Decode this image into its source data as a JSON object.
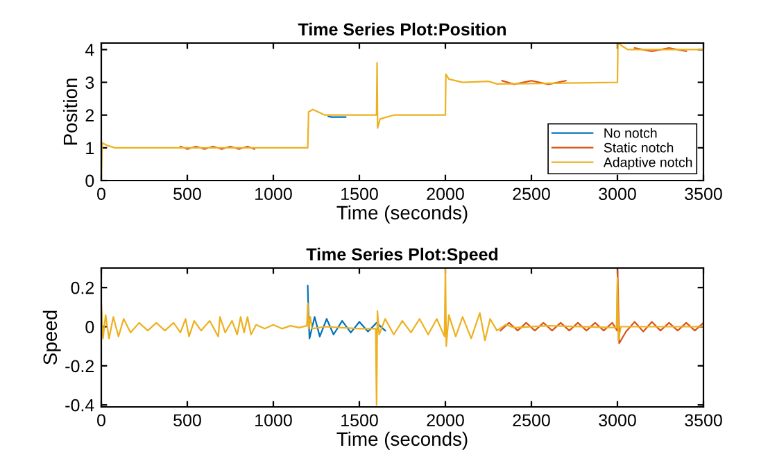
{
  "chart_data": [
    {
      "type": "line",
      "title": "Time Series Plot:Position",
      "xlabel": "Time (seconds)",
      "ylabel": "Position",
      "xlim": [
        0,
        3500
      ],
      "xticks": [
        0,
        500,
        1000,
        1500,
        2000,
        2500,
        3000,
        3500
      ],
      "ylim": [
        0,
        4.2
      ],
      "yticks": [
        0,
        1,
        2,
        3,
        4
      ],
      "grid": false,
      "legend": "bottom right",
      "line_style": "solid",
      "marker": "none",
      "series": [
        {
          "name": "No notch",
          "color": "#0072bd",
          "x": [
            1320,
            1340,
            1420
          ],
          "values": [
            1.96,
            1.94,
            1.94
          ]
        },
        {
          "name": "Static notch",
          "color": "#d95319",
          "x": [
            460,
            500,
            550,
            600,
            650,
            700,
            750,
            800,
            850,
            890,
            1000,
            2330,
            2400,
            2500,
            2600,
            2700,
            2800,
            3100,
            3200,
            3300,
            3400
          ],
          "values": [
            1.04,
            0.96,
            1.04,
            0.96,
            1.04,
            0.96,
            1.04,
            0.96,
            1.04,
            0.96,
            null,
            3.05,
            2.94,
            3.05,
            2.94,
            3.05,
            null,
            4.05,
            3.95,
            4.05,
            3.95
          ]
        },
        {
          "name": "Adaptive notch",
          "color": "#edb120",
          "x": [
            0,
            5,
            30,
            80,
            1200,
            1205,
            1230,
            1300,
            1600,
            1603,
            1606,
            1620,
            1700,
            2000,
            2003,
            2020,
            2100,
            2250,
            2300,
            3000,
            3003,
            3030,
            3060,
            3500
          ],
          "values": [
            0,
            1.15,
            1.08,
            1.0,
            1.0,
            2.1,
            2.17,
            2.0,
            2.0,
            3.6,
            1.6,
            1.88,
            2.0,
            2.0,
            3.25,
            3.1,
            3.0,
            3.03,
            2.95,
            3.0,
            4.2,
            4.1,
            4.0,
            4.0
          ]
        }
      ]
    },
    {
      "type": "line",
      "title": "Time Series Plot:Speed",
      "xlabel": "Time (seconds)",
      "ylabel": "Speed",
      "xlim": [
        0,
        3500
      ],
      "xticks": [
        0,
        500,
        1000,
        1500,
        2000,
        2500,
        3000,
        3500
      ],
      "ylim": [
        -0.41,
        0.3
      ],
      "yticks": [
        {
          "value": -0.4,
          "label": "-0.4"
        },
        {
          "value": -0.2,
          "label": "-0.2"
        },
        0,
        0.2
      ],
      "grid": false,
      "legend": false,
      "line_style": "solid",
      "marker": "none",
      "series": [
        {
          "color": "#0072bd",
          "x": [
            1200,
            1203,
            1210,
            1240,
            1270,
            1310,
            1350,
            1400,
            1450,
            1500,
            1550,
            1600,
            1650
          ],
          "values": [
            0.21,
            0.1,
            -0.06,
            0.05,
            -0.05,
            0.04,
            -0.04,
            0.03,
            -0.03,
            0.025,
            -0.025,
            0.02,
            -0.02
          ]
        },
        {
          "color": "#d95319",
          "x": [
            2320,
            2370,
            2420,
            2470,
            2520,
            2570,
            2620,
            2670,
            2720,
            2770,
            2820,
            2870,
            2920,
            2970,
            2998,
            3001,
            3010,
            3050,
            3100,
            3150,
            3200,
            3250,
            3300,
            3350,
            3400,
            3450,
            3500
          ],
          "values": [
            -0.02,
            0.02,
            -0.02,
            0.02,
            -0.02,
            0.02,
            -0.02,
            0.02,
            -0.02,
            0.02,
            -0.02,
            0.02,
            -0.02,
            0.02,
            -0.02,
            0.29,
            -0.085,
            -0.025,
            0.025,
            -0.025,
            0.025,
            -0.02,
            0.02,
            -0.02,
            0.02,
            -0.02,
            0.02
          ]
        },
        {
          "color": "#edb120",
          "x": [
            0,
            10,
            25,
            45,
            70,
            100,
            130,
            170,
            220,
            270,
            320,
            370,
            420,
            460,
            490,
            510,
            540,
            580,
            630,
            680,
            690,
            720,
            760,
            790,
            810,
            830,
            850,
            870,
            900,
            950,
            1000,
            1050,
            1100,
            1150,
            1195,
            1200,
            1205,
            1215,
            1225,
            1300,
            1400,
            1500,
            1595,
            1600,
            1605,
            1615,
            1650,
            1700,
            1750,
            1800,
            1850,
            1900,
            1950,
            1995,
            2000,
            2005,
            2020,
            2060,
            2100,
            2150,
            2200,
            2230,
            2260,
            2300,
            2350,
            2400,
            2600,
            2995,
            3000,
            3005,
            3020,
            3500
          ],
          "values": [
            0.12,
            -0.06,
            0.06,
            -0.06,
            0.05,
            -0.05,
            0.04,
            -0.03,
            0.02,
            -0.02,
            0.02,
            -0.02,
            0.02,
            -0.03,
            0.04,
            -0.05,
            0.03,
            -0.02,
            0.03,
            -0.05,
            0.05,
            -0.03,
            0.03,
            -0.04,
            0.05,
            -0.03,
            0.05,
            -0.04,
            0.01,
            -0.01,
            0.01,
            -0.01,
            0.005,
            -0.005,
            0.005,
            0.12,
            -0.01,
            0.05,
            -0.01,
            0.0,
            -0.005,
            -0.01,
            -0.01,
            -0.4,
            0.08,
            -0.04,
            0.04,
            -0.04,
            0.03,
            -0.03,
            0.04,
            -0.04,
            0.04,
            -0.05,
            0.3,
            -0.1,
            0.06,
            -0.05,
            0.05,
            -0.06,
            0.07,
            -0.07,
            0.04,
            -0.02,
            0.01,
            -0.005,
            0.005,
            -0.005,
            0.25,
            -0.07,
            0.0,
            0.0
          ]
        }
      ]
    }
  ]
}
